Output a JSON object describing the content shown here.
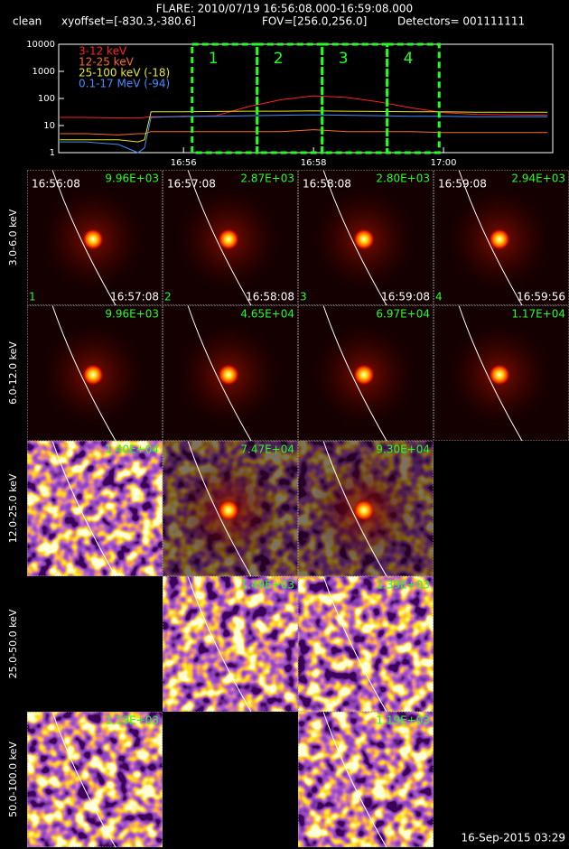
{
  "header": {
    "title": "FLARE: 2010/07/19 16:56:08.000-16:59:08.000",
    "subtitle": [
      "clean",
      "xyoffset=[-830.3,-380.6]",
      "FOV=[256.0,256.0]",
      "Detectors= 001111111"
    ]
  },
  "chart_data": {
    "type": "line",
    "log_y": true,
    "x": [
      54.1,
      54.5,
      55.0,
      55.3,
      55.4,
      55.5,
      56.0,
      56.5,
      57.0,
      57.5,
      58.0,
      58.5,
      59.0,
      59.5,
      60.0,
      60.5,
      61.0,
      61.6
    ],
    "series": [
      {
        "name": "3-12 keV",
        "color": "#ff2020",
        "values": [
          20,
          20,
          19,
          19,
          20,
          21,
          21,
          23,
          50,
          90,
          125,
          110,
          75,
          45,
          30,
          26,
          25,
          24
        ]
      },
      {
        "name": "12-25 keV",
        "color": "#ff6a20",
        "values": [
          5,
          5,
          4.5,
          5,
          5,
          6,
          6,
          6,
          6,
          6,
          7,
          6,
          6,
          6,
          5.5,
          5.5,
          5.5,
          5.5
        ]
      },
      {
        "name": "25-100 keV (-18)",
        "color": "#e8e820",
        "values": [
          3,
          3,
          3,
          2.5,
          3,
          32,
          32,
          33,
          34,
          34,
          35,
          34,
          33,
          32,
          32,
          31,
          31,
          31
        ]
      },
      {
        "name": "0.1-17 MeV (-94)",
        "color": "#3f8fff",
        "values": [
          2.5,
          2.5,
          2,
          1,
          1.5,
          20,
          22,
          22,
          23,
          24,
          25,
          24,
          23,
          22,
          22,
          21,
          21,
          21
        ]
      }
    ],
    "xlim": [
      54.08,
      61.68
    ],
    "xticks": [
      {
        "value": 56,
        "label": "16:56"
      },
      {
        "value": 58,
        "label": "16:58"
      },
      {
        "value": 60,
        "label": "17:00"
      }
    ],
    "ylim": [
      1,
      10000
    ],
    "yticks": [
      1,
      10,
      100,
      1000,
      10000
    ],
    "intervals": [
      {
        "label": "1",
        "start": 56.133,
        "end": 57.133,
        "start_label": "16:56:08",
        "end_label": "16:57:08"
      },
      {
        "label": "2",
        "start": 57.133,
        "end": 58.133,
        "start_label": "16:57:08",
        "end_label": "16:58:08"
      },
      {
        "label": "3",
        "start": 58.133,
        "end": 59.133,
        "start_label": "16:58:08",
        "end_label": "16:59:08"
      },
      {
        "label": "4",
        "start": 59.133,
        "end": 59.933,
        "start_label": "16:59:08",
        "end_label": "16:59:56"
      }
    ],
    "interval_color": "#20ff20"
  },
  "panels": [
    {
      "label": "3.0-6.0 keV",
      "peaks": [
        "9.96E+03",
        "2.87E+03",
        "2.80E+03",
        "2.94E+03"
      ]
    },
    {
      "label": "6.0-12.0 keV",
      "peaks": [
        "9.96E+03",
        "4.65E+04",
        "6.97E+04",
        "1.17E+04"
      ]
    },
    {
      "label": "12.0-25.0 keV",
      "peaks": [
        "1.40E+04",
        "7.47E+04",
        "9.30E+04",
        null
      ]
    },
    {
      "label": "25.0-50.0 keV",
      "peaks": [
        null,
        "1.49E+03",
        "1.39E+03",
        null
      ]
    },
    {
      "label": "50.0-100.0 keV",
      "peaks": [
        "1.19E+03",
        null,
        "1.19E+03",
        null
      ]
    }
  ],
  "footer": "16-Sep-2015 03:29"
}
